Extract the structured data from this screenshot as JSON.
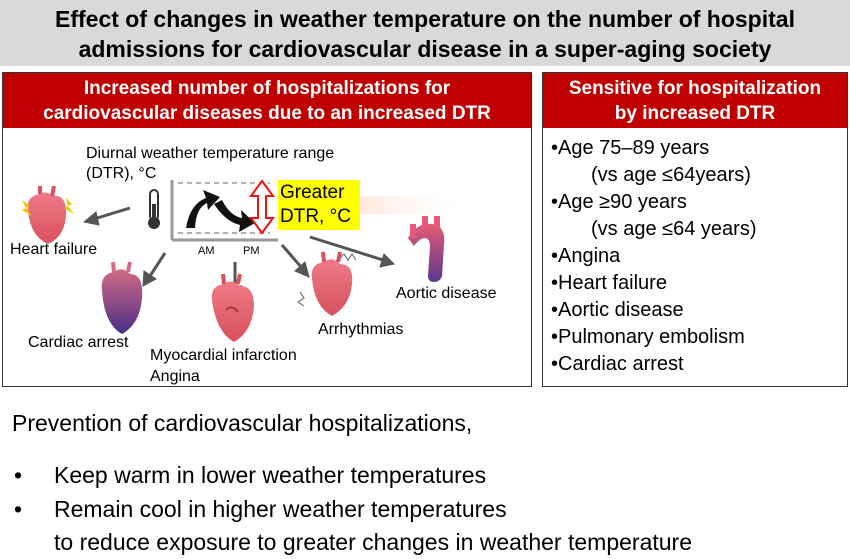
{
  "title": {
    "line1": "Effect of changes in weather temperature on the number of hospital",
    "line2": "admissions for cardiovascular disease in a super-aging society"
  },
  "left_panel": {
    "header_line1": "Increased number of hospitalizations for",
    "header_line2": "cardiovascular diseases due to an increased DTR",
    "dtr_line1": "Diurnal weather temperature range",
    "dtr_line2": "(DTR), °C",
    "am": "AM",
    "pm": "PM",
    "greater_line1": "Greater",
    "greater_line2": "DTR, °C",
    "labels": {
      "heart_failure": "Heart failure",
      "cardiac_arrest": "Cardiac arrest",
      "mi_line1": "Myocardial infarction",
      "mi_line2": "Angina",
      "arrhythmias": "Arrhythmias",
      "aortic": "Aortic disease"
    },
    "icons": [
      "heart-icon",
      "thermometer-icon",
      "arrow-icon",
      "aorta-icon"
    ],
    "colors": {
      "header_red": "#c00000",
      "highlight_yellow": "#ffff00",
      "heart_pink": "#e8707a",
      "heart_purple": "#5b3a8c"
    }
  },
  "right_panel": {
    "header_line1": "Sensitive for hospitalization",
    "header_line2": "by increased DTR",
    "items": [
      "•Age 75–89 years",
      "(vs age ≤64years)",
      "•Age ≥90 years",
      "(vs age ≤64 years)",
      "•Angina",
      "•Heart failure",
      "•Aortic disease",
      "•Pulmonary embolism",
      "•Cardiac arrest"
    ]
  },
  "bottom": {
    "prevention": "Prevention of cardiovascular hospitalizations,",
    "bullet": "•",
    "item1": "Keep warm in lower weather temperatures",
    "item2": "Remain cool in higher weather temperatures",
    "item3": "to reduce exposure to greater changes in weather temperature"
  }
}
